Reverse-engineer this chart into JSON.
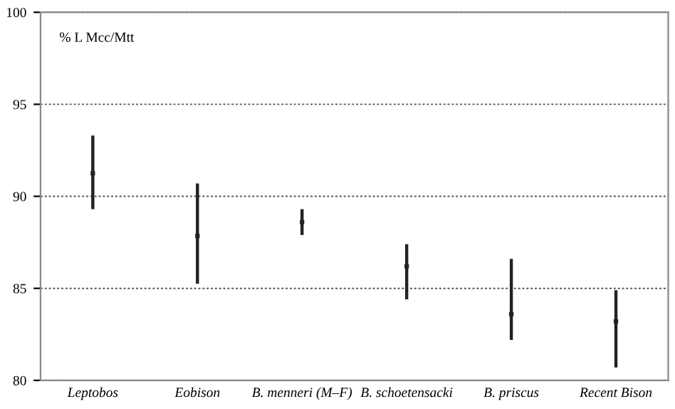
{
  "chart_data": {
    "type": "bar",
    "ylabel": "% L Mcc/Mtt",
    "categories": [
      "Leptobos",
      "Eobison",
      "B. menneri (M–F)",
      "B. schoetensacki",
      "B. priscus",
      "Recent Bison"
    ],
    "series": [
      {
        "color": "#222222",
        "base": [
          89.3,
          85.25,
          87.9,
          84.4,
          82.2,
          80.7
        ],
        "values": [
          4.0,
          5.45,
          1.4,
          3.0,
          4.4,
          4.2
        ]
      },
      {
        "type": "scatter",
        "color": "#222222",
        "x": [
          "Leptobos",
          "Eobison",
          "B. menneri (M–F)",
          "B. schoetensacki",
          "B. priscus",
          "Recent Bison"
        ],
        "values": [
          91.25,
          87.85,
          88.6,
          86.2,
          83.6,
          83.2
        ]
      }
    ],
    "ylim": [
      80,
      100
    ],
    "yticks": [
      80,
      85,
      90,
      95,
      100
    ],
    "grid": "y"
  }
}
